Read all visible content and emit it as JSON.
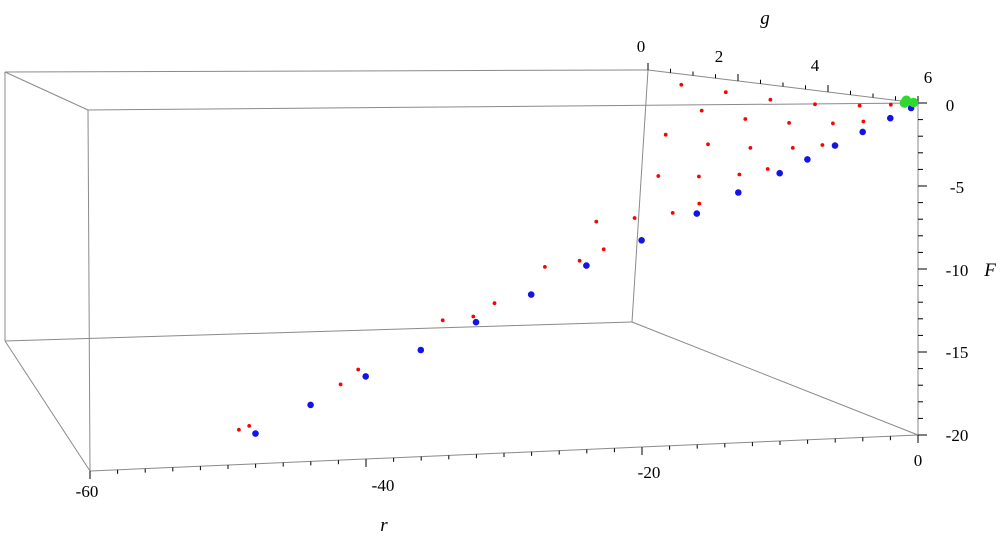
{
  "chart_data": {
    "type": "scatter",
    "title": "",
    "dimensions": "3D",
    "axes": {
      "r": {
        "label": "r",
        "range": [
          -60,
          0
        ],
        "ticks": [
          "-60",
          "-40",
          "-20",
          "0"
        ]
      },
      "g": {
        "label": "g",
        "range": [
          0,
          6
        ],
        "ticks": [
          "0",
          "2",
          "4",
          "6"
        ]
      },
      "F": {
        "label": "F",
        "range": [
          -20,
          0
        ],
        "ticks": [
          "0",
          "-5",
          "-10",
          "-15",
          "-20"
        ]
      }
    },
    "grid": false,
    "legend": "none",
    "colors": {
      "series_a": "#ff0000",
      "series_b": "#1414e6",
      "series_c": "#2fd82f",
      "box": "#8a8a8a"
    },
    "series": [
      {
        "color": "#ff0000",
        "point_size": "small",
        "description_values": "grid of points for g from 0 to about 5, lying below the blue line",
        "points_rgF": [
          [
            -1.0,
            0.3,
            -0.2
          ],
          [
            -1.0,
            1.0,
            -0.5
          ],
          [
            -1.0,
            2.0,
            -0.8
          ],
          [
            -1.0,
            3.0,
            -0.9
          ],
          [
            -1.0,
            4.0,
            -0.8
          ],
          [
            -1.0,
            5.0,
            -0.7
          ],
          [
            -3.0,
            0.3,
            -1.2
          ],
          [
            -3.0,
            1.0,
            -1.6
          ],
          [
            -3.0,
            2.0,
            -2.0
          ],
          [
            -3.0,
            3.0,
            -2.2
          ],
          [
            -3.0,
            4.0,
            -2.1
          ],
          [
            -6.0,
            0.3,
            -2.6
          ],
          [
            -6.0,
            1.0,
            -3.1
          ],
          [
            -6.0,
            2.0,
            -3.6
          ],
          [
            -6.0,
            3.0,
            -3.9
          ],
          [
            -6.0,
            4.0,
            -3.8
          ],
          [
            -10.0,
            0.3,
            -4.0
          ],
          [
            -10.0,
            1.0,
            -4.7
          ],
          [
            -10.0,
            2.0,
            -5.4
          ],
          [
            -10.0,
            3.0,
            -6.0
          ],
          [
            -15.0,
            0.3,
            -6.0
          ],
          [
            -15.0,
            1.0,
            -7.0
          ],
          [
            -15.0,
            2.0,
            -8.0
          ],
          [
            -15.0,
            3.0,
            -9.0
          ],
          [
            -22.0,
            0.3,
            -8.6
          ],
          [
            -22.0,
            1.0,
            -9.8
          ],
          [
            -22.0,
            2.0,
            -11.0
          ],
          [
            -30.0,
            0.3,
            -11.6
          ],
          [
            -30.0,
            1.0,
            -13.0
          ],
          [
            -30.0,
            2.0,
            -14.2
          ],
          [
            -40.0,
            0.3,
            -15.2
          ],
          [
            -40.0,
            1.0,
            -16.8
          ],
          [
            -48.0,
            0.3,
            -18.2
          ],
          [
            -48.0,
            0.8,
            -19.0
          ]
        ]
      },
      {
        "color": "#1414e6",
        "point_size": "medium",
        "description_values": "points along g = 0 line from r = 0 to about r = -48",
        "points_rgF": [
          [
            -0.5,
            0,
            -0.3
          ],
          [
            -2.0,
            0,
            -0.9
          ],
          [
            -4.0,
            0,
            -1.7
          ],
          [
            -6.0,
            0,
            -2.5
          ],
          [
            -8.0,
            0,
            -3.3
          ],
          [
            -10.0,
            0,
            -4.1
          ],
          [
            -13.0,
            0,
            -5.2
          ],
          [
            -16.0,
            0,
            -6.4
          ],
          [
            -20.0,
            0,
            -7.9
          ],
          [
            -24.0,
            0,
            -9.3
          ],
          [
            -28.0,
            0,
            -10.9
          ],
          [
            -32.0,
            0,
            -12.4
          ],
          [
            -36.0,
            0,
            -13.9
          ],
          [
            -40.0,
            0,
            -15.3
          ],
          [
            -44.0,
            0,
            -16.8
          ],
          [
            -48.0,
            0,
            -18.3
          ]
        ]
      },
      {
        "color": "#2fd82f",
        "point_size": "large",
        "description_values": "small cluster near r = 0, g = 0, F = 0",
        "points_rgF": [
          [
            0,
            0.1,
            0
          ],
          [
            0,
            0.3,
            -0.1
          ],
          [
            -0.2,
            0.2,
            0.1
          ]
        ]
      }
    ]
  }
}
